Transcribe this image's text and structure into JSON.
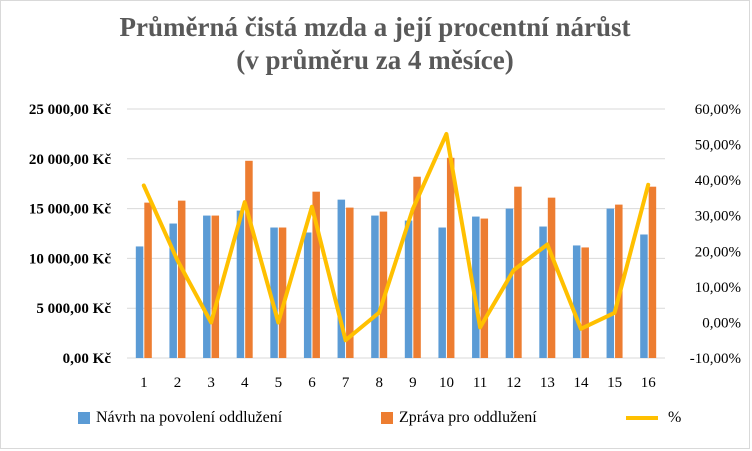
{
  "colors": {
    "series1": "#5b9bd5",
    "series2": "#ed7d31",
    "series3": "#ffc000",
    "grid": "#d9d9d9",
    "title": "#595959"
  },
  "chart_data": {
    "type": "bar",
    "title_line1": "Průměrná čistá mzda a její procentní nárůst",
    "title_line2": "(v průměru za 4 měsíce)",
    "categories": [
      "1",
      "2",
      "3",
      "4",
      "5",
      "6",
      "7",
      "8",
      "9",
      "10",
      "11",
      "12",
      "13",
      "14",
      "15",
      "16"
    ],
    "series": [
      {
        "name": "Návrh na povolení oddlužení",
        "type": "bar",
        "axis": "left",
        "values": [
          11200,
          13500,
          14300,
          14800,
          13100,
          12600,
          15900,
          14300,
          13800,
          13100,
          14200,
          15000,
          13200,
          11300,
          15000,
          12400
        ]
      },
      {
        "name": "Zpráva pro oddlužení",
        "type": "bar",
        "axis": "left",
        "values": [
          15600,
          15800,
          14300,
          19800,
          13100,
          16700,
          15100,
          14700,
          18200,
          20100,
          14000,
          17200,
          16100,
          11100,
          15400,
          17200
        ]
      },
      {
        "name": "%",
        "type": "line",
        "axis": "right",
        "values": [
          38.5,
          17.5,
          0.0,
          33.8,
          0.0,
          32.5,
          -5.0,
          2.8,
          31.9,
          53.0,
          -1.4,
          14.7,
          21.9,
          -1.8,
          2.7,
          38.7
        ]
      }
    ],
    "ylim_left": [
      0,
      25000
    ],
    "ylim_right": [
      -10,
      60
    ],
    "left_ticks": [
      "0,00 Kč",
      "5 000,00 Kč",
      "10 000,00 Kč",
      "15 000,00 Kč",
      "20 000,00 Kč",
      "25 000,00 Kč"
    ],
    "right_ticks": [
      "-10,00%",
      "0,00%",
      "10,00%",
      "20,00%",
      "30,00%",
      "40,00%",
      "50,00%",
      "60,00%"
    ],
    "grid": true,
    "legend_position": "bottom"
  }
}
